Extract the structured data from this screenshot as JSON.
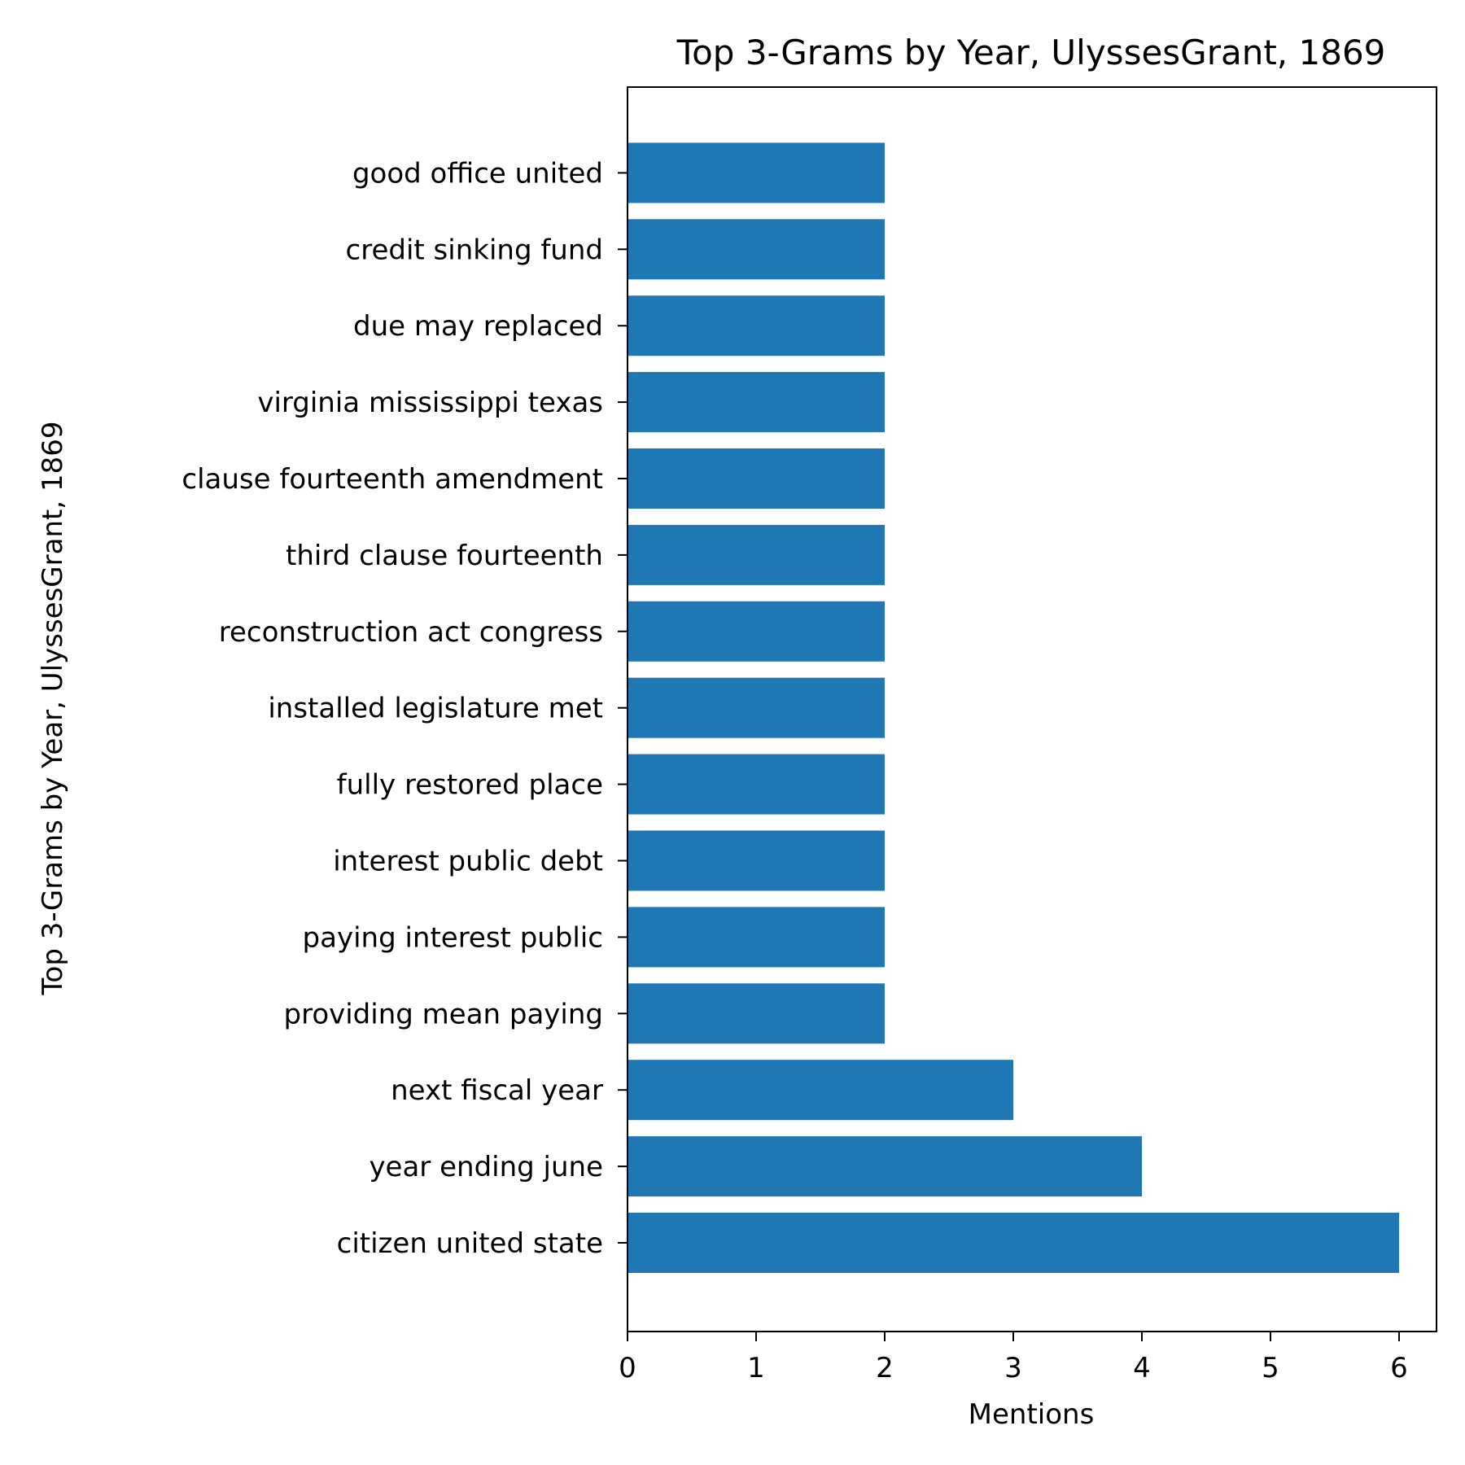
{
  "chart_data": {
    "type": "bar",
    "orientation": "horizontal",
    "title": "Top 3-Grams by Year, UlyssesGrant, 1869",
    "xlabel": "Mentions",
    "ylabel": "Top 3-Grams by Year, UlyssesGrant, 1869",
    "categories": [
      "citizen united state",
      "year ending june",
      "next fiscal year",
      "providing mean paying",
      "paying interest public",
      "interest public debt",
      "fully restored place",
      "installed legislature met",
      "reconstruction act congress",
      "third clause fourteenth",
      "clause fourteenth amendment",
      "virginia mississippi texas",
      "due may replaced",
      "credit sinking fund",
      "good office united"
    ],
    "values": [
      6,
      4,
      3,
      2,
      2,
      2,
      2,
      2,
      2,
      2,
      2,
      2,
      2,
      2,
      2
    ],
    "xlim": [
      0,
      6.3
    ],
    "xticks": [
      "0",
      "1",
      "2",
      "3",
      "4",
      "5",
      "6"
    ],
    "grid": false,
    "bar_color": "#1f77b4"
  }
}
